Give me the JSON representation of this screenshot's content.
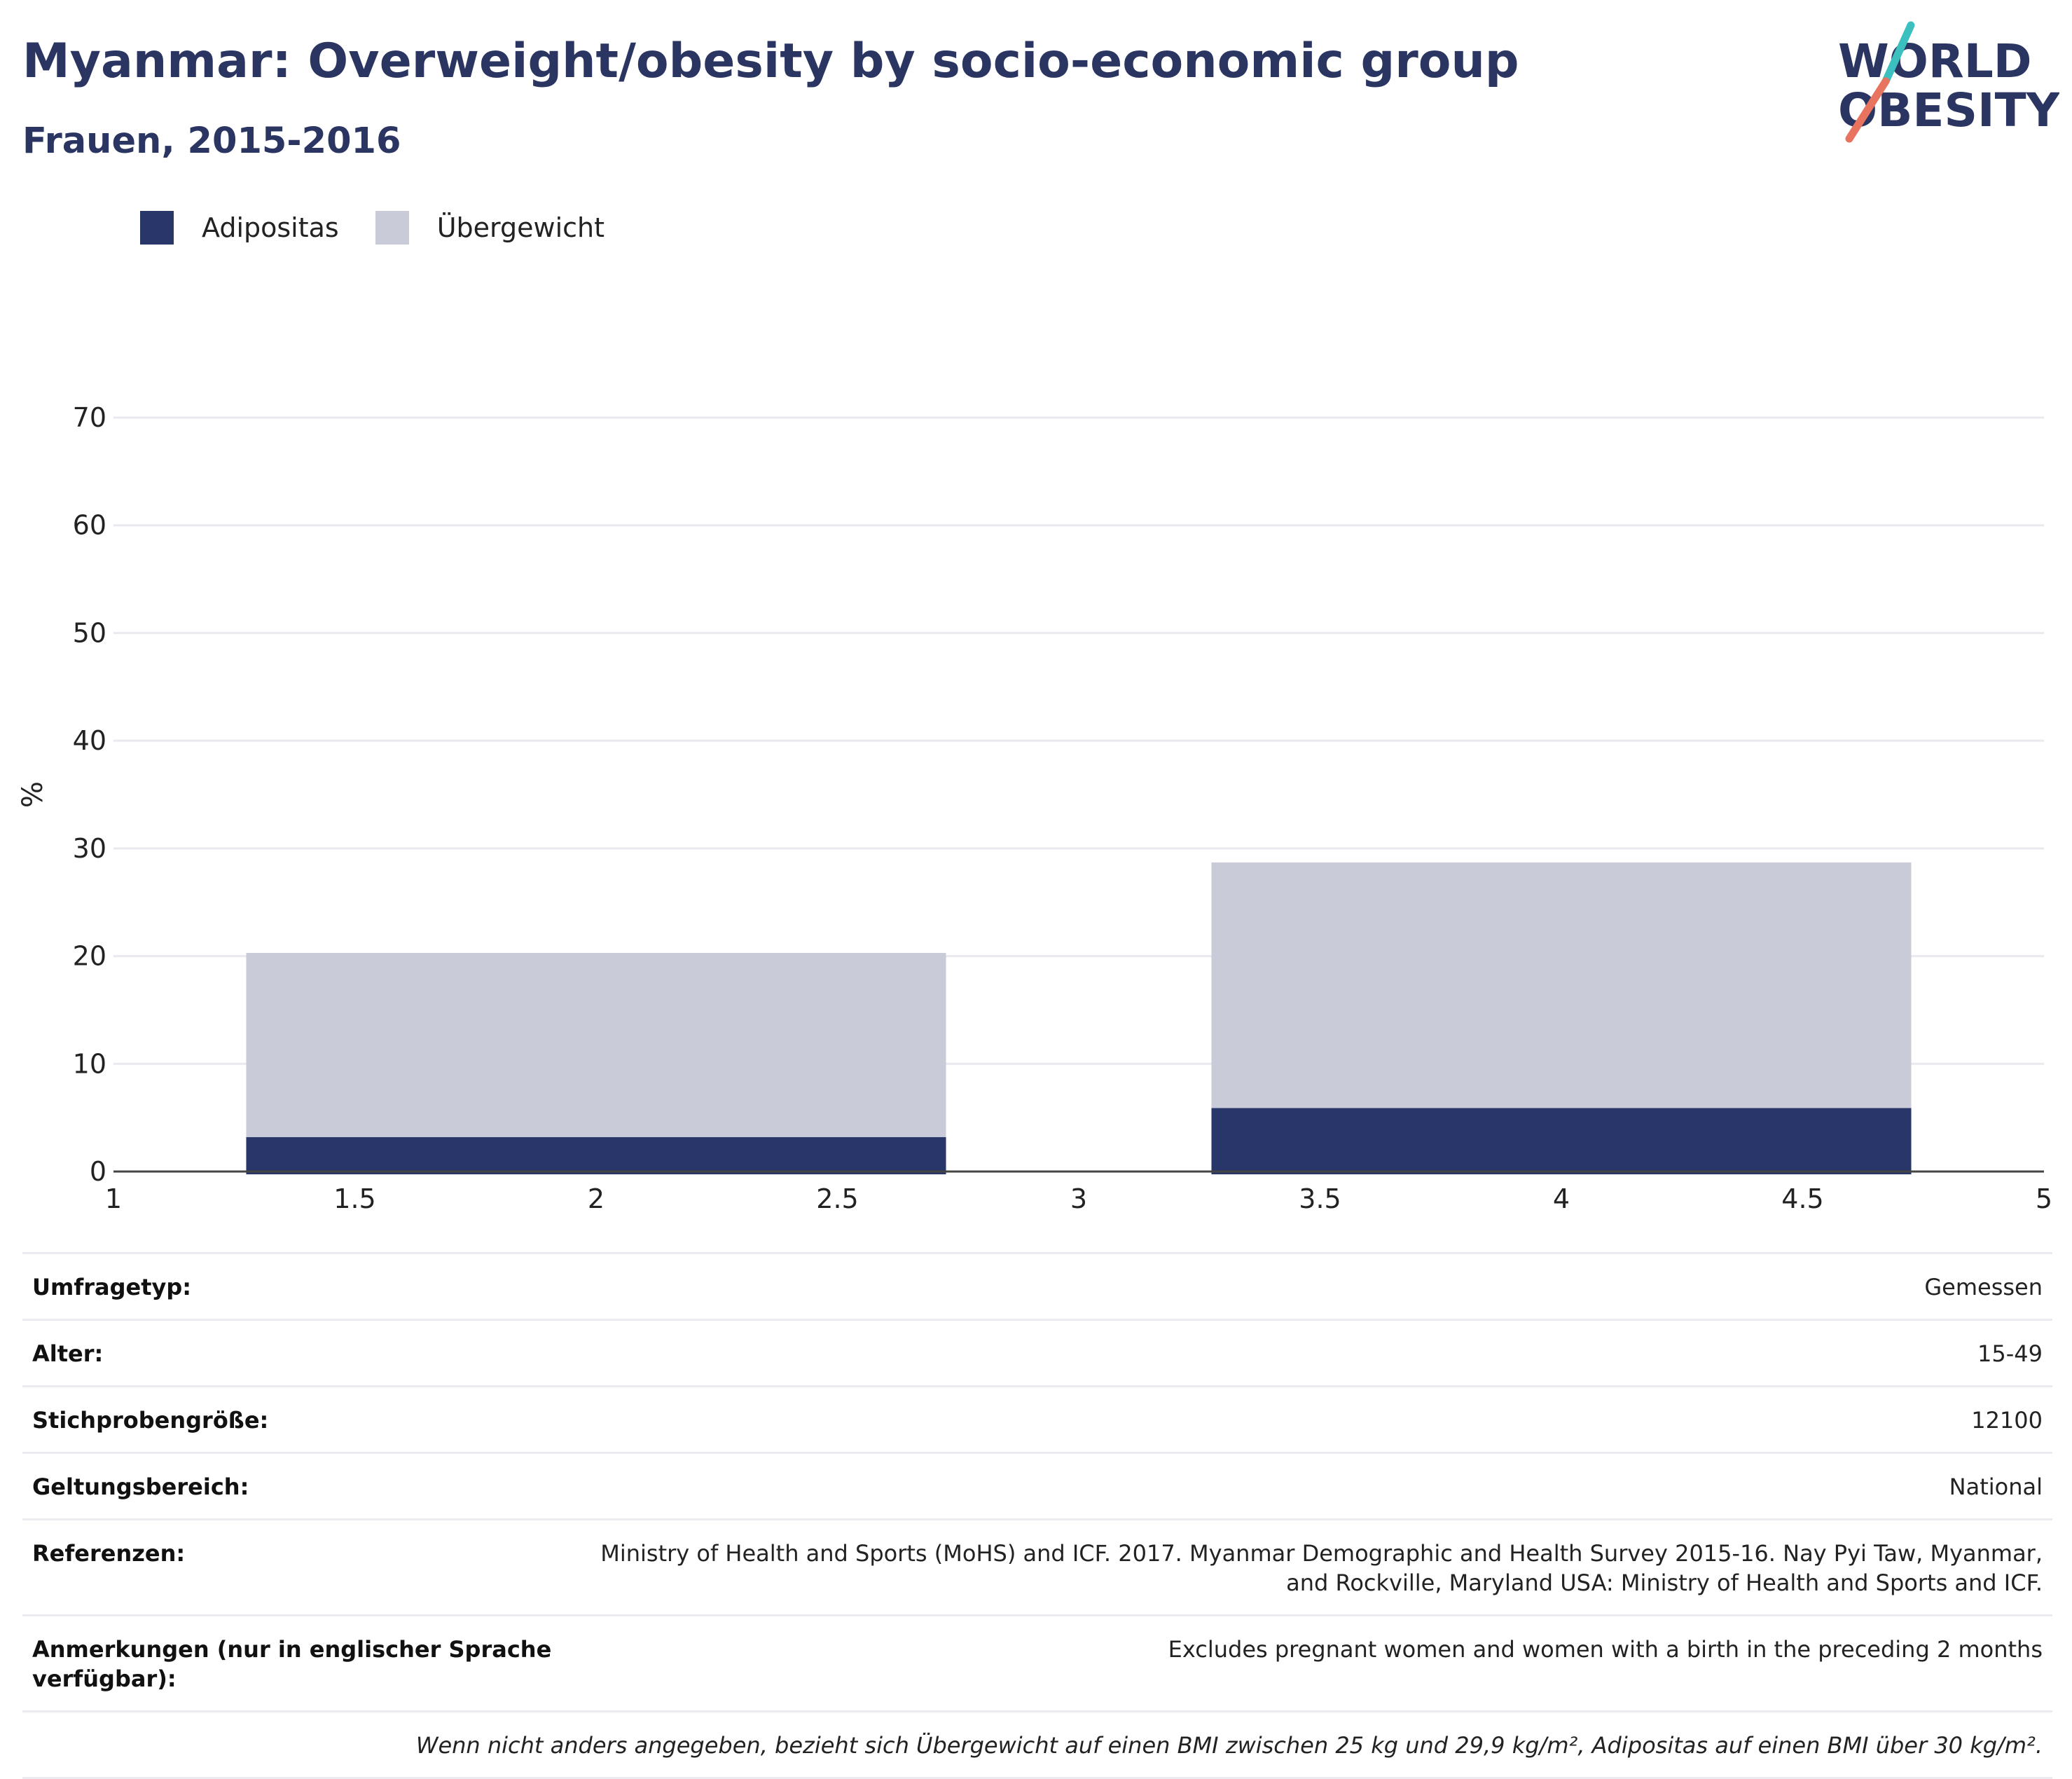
{
  "header": {
    "title": "Myanmar: Overweight/obesity by socio-economic group",
    "subtitle": "Frauen, 2015-2016"
  },
  "logo": {
    "line1": "WORLD",
    "line2": "OBESITY",
    "colors": {
      "text": "#2b3562",
      "teal": "#3bbfbf",
      "coral": "#e8735f"
    }
  },
  "legend": [
    {
      "label": "Adipositas",
      "color": "#29366a"
    },
    {
      "label": "Übergewicht",
      "color": "#c9ccd8"
    }
  ],
  "chart_data": {
    "type": "bar",
    "stacked": true,
    "ylabel": "%",
    "xlabel": "",
    "xlim": [
      1,
      5
    ],
    "ylim": [
      0,
      70
    ],
    "x_ticks": [
      "1",
      "1.5",
      "2",
      "2.5",
      "3",
      "3.5",
      "4",
      "4.5",
      "5"
    ],
    "y_ticks": [
      "0",
      "10",
      "20",
      "30",
      "40",
      "50",
      "60",
      "70"
    ],
    "bar_centers": [
      2,
      4
    ],
    "series": [
      {
        "name": "Adipositas",
        "color": "#29366a",
        "values": [
          3.2,
          5.9
        ]
      },
      {
        "name": "Übergewicht",
        "color": "#c9ccd8",
        "values": [
          17.1,
          22.8
        ]
      }
    ],
    "grid": true
  },
  "info": {
    "rows": [
      {
        "key": "Umfragetyp:",
        "value": "Gemessen"
      },
      {
        "key": "Alter:",
        "value": "15-49"
      },
      {
        "key": "Stichprobengröße:",
        "value": "12100"
      },
      {
        "key": "Geltungsbereich:",
        "value": "National"
      },
      {
        "key": "Referenzen:",
        "value": "Ministry of Health and Sports (MoHS) and ICF. 2017. Myanmar Demographic and Health Survey 2015-16. Nay Pyi Taw, Myanmar, and Rockville, Maryland USA: Ministry of Health and Sports and ICF."
      },
      {
        "key": "Anmerkungen (nur in englischer Sprache verfügbar):",
        "value": "Excludes pregnant women and women with a birth in the preceding 2 months"
      }
    ],
    "footnote": "Wenn nicht anders angegeben, bezieht sich Übergewicht auf einen BMI zwischen 25 kg und 29,9 kg/m², Adipositas auf einen BMI über 30 kg/m²."
  }
}
